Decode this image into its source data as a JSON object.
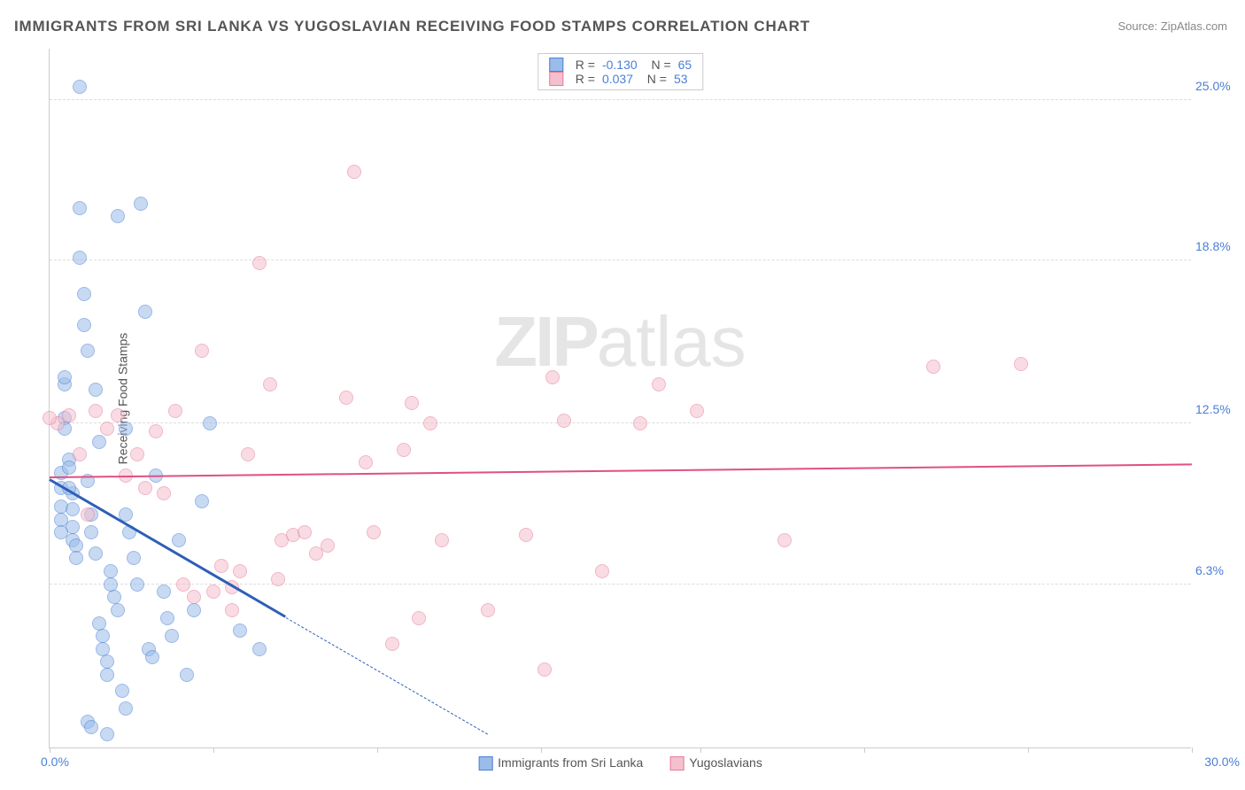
{
  "title": "IMMIGRANTS FROM SRI LANKA VS YUGOSLAVIAN RECEIVING FOOD STAMPS CORRELATION CHART",
  "source_label": "Source: ZipAtlas.com",
  "ylabel": "Receiving Food Stamps",
  "watermark_bold": "ZIP",
  "watermark_light": "atlas",
  "chart": {
    "type": "scatter",
    "xlim": [
      0,
      30
    ],
    "ylim": [
      0,
      27
    ],
    "xlabel_min": "0.0%",
    "xlabel_max": "30.0%",
    "ytick_values": [
      6.3,
      12.5,
      18.8,
      25.0
    ],
    "ytick_labels": [
      "6.3%",
      "12.5%",
      "18.8%",
      "25.0%"
    ],
    "xtick_values": [
      0,
      4.3,
      8.6,
      12.9,
      17.1,
      21.4,
      25.7,
      30
    ],
    "background_color": "#ffffff",
    "grid_color": "#dddddd",
    "axis_color": "#cccccc",
    "tick_label_color": "#4a7fd8",
    "title_color": "#555555",
    "title_fontsize": 17,
    "label_fontsize": 14,
    "marker_radius": 8,
    "marker_opacity": 0.55,
    "series": [
      {
        "name": "Immigrants from Sri Lanka",
        "fill_color": "#9bbce8",
        "stroke_color": "#4a7fd8",
        "trend_color": "#2d5fb8",
        "R": "-0.130",
        "N": "65",
        "trend": {
          "x1": 0,
          "y1": 10.3,
          "x2": 6.2,
          "y2": 5.0,
          "solid_end_x": 6.2,
          "dashed_to_x": 11.5,
          "dashed_to_y": 0.5
        },
        "points": [
          [
            0.3,
            10.6
          ],
          [
            0.3,
            10.0
          ],
          [
            0.3,
            9.3
          ],
          [
            0.3,
            8.8
          ],
          [
            0.3,
            8.3
          ],
          [
            0.4,
            14.0
          ],
          [
            0.4,
            12.7
          ],
          [
            0.4,
            12.3
          ],
          [
            0.5,
            11.1
          ],
          [
            0.5,
            10.8
          ],
          [
            0.6,
            9.8
          ],
          [
            0.6,
            9.2
          ],
          [
            0.6,
            8.5
          ],
          [
            0.6,
            8.0
          ],
          [
            0.7,
            7.8
          ],
          [
            0.7,
            7.3
          ],
          [
            0.8,
            25.5
          ],
          [
            0.8,
            20.8
          ],
          [
            0.8,
            18.9
          ],
          [
            0.9,
            17.5
          ],
          [
            0.9,
            16.3
          ],
          [
            1.0,
            15.3
          ],
          [
            1.0,
            10.3
          ],
          [
            1.1,
            9.0
          ],
          [
            1.1,
            8.3
          ],
          [
            1.2,
            7.5
          ],
          [
            1.2,
            13.8
          ],
          [
            1.3,
            11.8
          ],
          [
            1.3,
            4.8
          ],
          [
            1.4,
            4.3
          ],
          [
            1.4,
            3.8
          ],
          [
            1.5,
            3.3
          ],
          [
            1.5,
            2.8
          ],
          [
            1.6,
            6.8
          ],
          [
            1.6,
            6.3
          ],
          [
            1.7,
            5.8
          ],
          [
            1.8,
            5.3
          ],
          [
            1.8,
            20.5
          ],
          [
            1.9,
            2.2
          ],
          [
            2.0,
            9.0
          ],
          [
            2.1,
            8.3
          ],
          [
            2.2,
            7.3
          ],
          [
            2.3,
            6.3
          ],
          [
            2.4,
            21.0
          ],
          [
            2.5,
            16.8
          ],
          [
            2.6,
            3.8
          ],
          [
            2.7,
            3.5
          ],
          [
            2.8,
            10.5
          ],
          [
            3.0,
            6.0
          ],
          [
            3.1,
            5.0
          ],
          [
            3.2,
            4.3
          ],
          [
            3.4,
            8.0
          ],
          [
            3.6,
            2.8
          ],
          [
            3.8,
            5.3
          ],
          [
            4.0,
            9.5
          ],
          [
            4.2,
            12.5
          ],
          [
            1.0,
            1.0
          ],
          [
            1.1,
            0.8
          ],
          [
            1.5,
            0.5
          ],
          [
            2.0,
            1.5
          ],
          [
            5.5,
            3.8
          ],
          [
            2.0,
            12.3
          ],
          [
            0.4,
            14.3
          ],
          [
            0.5,
            10.0
          ],
          [
            5.0,
            4.5
          ]
        ]
      },
      {
        "name": "Yugoslavians",
        "fill_color": "#f5c0cd",
        "stroke_color": "#e77a9a",
        "trend_color": "#e05080",
        "R": "0.037",
        "N": "53",
        "trend": {
          "x1": 0,
          "y1": 10.4,
          "x2": 30,
          "y2": 10.9
        },
        "points": [
          [
            0.2,
            12.5
          ],
          [
            0.5,
            12.8
          ],
          [
            0.8,
            11.3
          ],
          [
            1.2,
            13.0
          ],
          [
            1.5,
            12.3
          ],
          [
            1.8,
            12.8
          ],
          [
            2.0,
            10.5
          ],
          [
            2.3,
            11.3
          ],
          [
            2.5,
            10.0
          ],
          [
            2.8,
            12.2
          ],
          [
            3.0,
            9.8
          ],
          [
            3.3,
            13.0
          ],
          [
            3.5,
            6.3
          ],
          [
            3.8,
            5.8
          ],
          [
            4.0,
            15.3
          ],
          [
            4.3,
            6.0
          ],
          [
            4.5,
            7.0
          ],
          [
            4.8,
            5.3
          ],
          [
            5.0,
            6.8
          ],
          [
            5.2,
            11.3
          ],
          [
            5.5,
            18.7
          ],
          [
            5.8,
            14.0
          ],
          [
            6.1,
            8.0
          ],
          [
            6.4,
            8.2
          ],
          [
            6.7,
            8.3
          ],
          [
            7.0,
            7.5
          ],
          [
            7.3,
            7.8
          ],
          [
            7.8,
            13.5
          ],
          [
            8.0,
            22.2
          ],
          [
            8.3,
            11.0
          ],
          [
            8.5,
            8.3
          ],
          [
            9.0,
            4.0
          ],
          [
            9.3,
            11.5
          ],
          [
            9.5,
            13.3
          ],
          [
            9.7,
            5.0
          ],
          [
            10.0,
            12.5
          ],
          [
            10.3,
            8.0
          ],
          [
            11.5,
            5.3
          ],
          [
            12.5,
            8.2
          ],
          [
            13.0,
            3.0
          ],
          [
            13.2,
            14.3
          ],
          [
            13.5,
            12.6
          ],
          [
            14.5,
            6.8
          ],
          [
            15.5,
            12.5
          ],
          [
            16.0,
            14.0
          ],
          [
            17.0,
            13.0
          ],
          [
            19.3,
            8.0
          ],
          [
            23.2,
            14.7
          ],
          [
            25.5,
            14.8
          ],
          [
            4.8,
            6.2
          ],
          [
            6.0,
            6.5
          ],
          [
            1.0,
            9.0
          ],
          [
            0.0,
            12.7
          ]
        ]
      }
    ]
  },
  "legend_bottom": [
    {
      "label": "Immigrants from Sri Lanka",
      "fill": "#9bbce8",
      "stroke": "#4a7fd8"
    },
    {
      "label": "Yugoslavians",
      "fill": "#f5c0cd",
      "stroke": "#e77a9a"
    }
  ]
}
